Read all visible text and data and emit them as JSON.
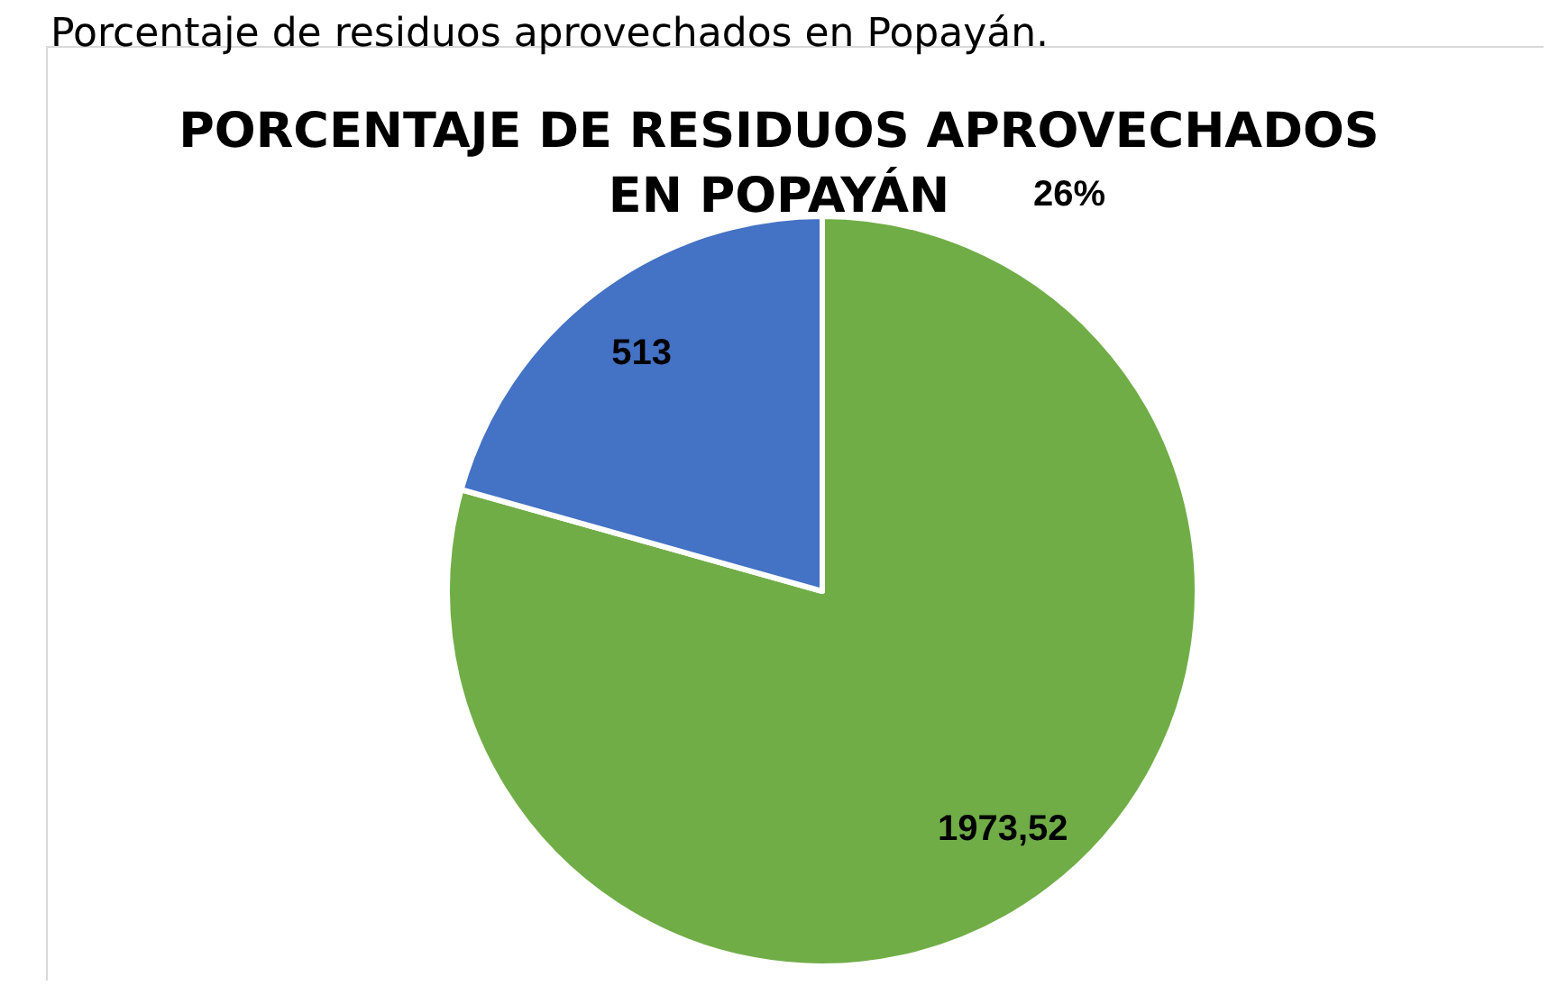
{
  "chart_data": {
    "type": "pie",
    "title": "PORCENTAJE DE RESIDUOS APROVECHADOS\nEN POPAYÁN",
    "categories": [
      null,
      null
    ],
    "values": [
      1973.52,
      513
    ],
    "value_labels": [
      "1973,52",
      "513"
    ],
    "colors": [
      "#70ad47",
      "#4472c4"
    ],
    "annotations": [
      "Porcentaje de residuos aprovechados en Popayán.",
      "26%"
    ]
  }
}
